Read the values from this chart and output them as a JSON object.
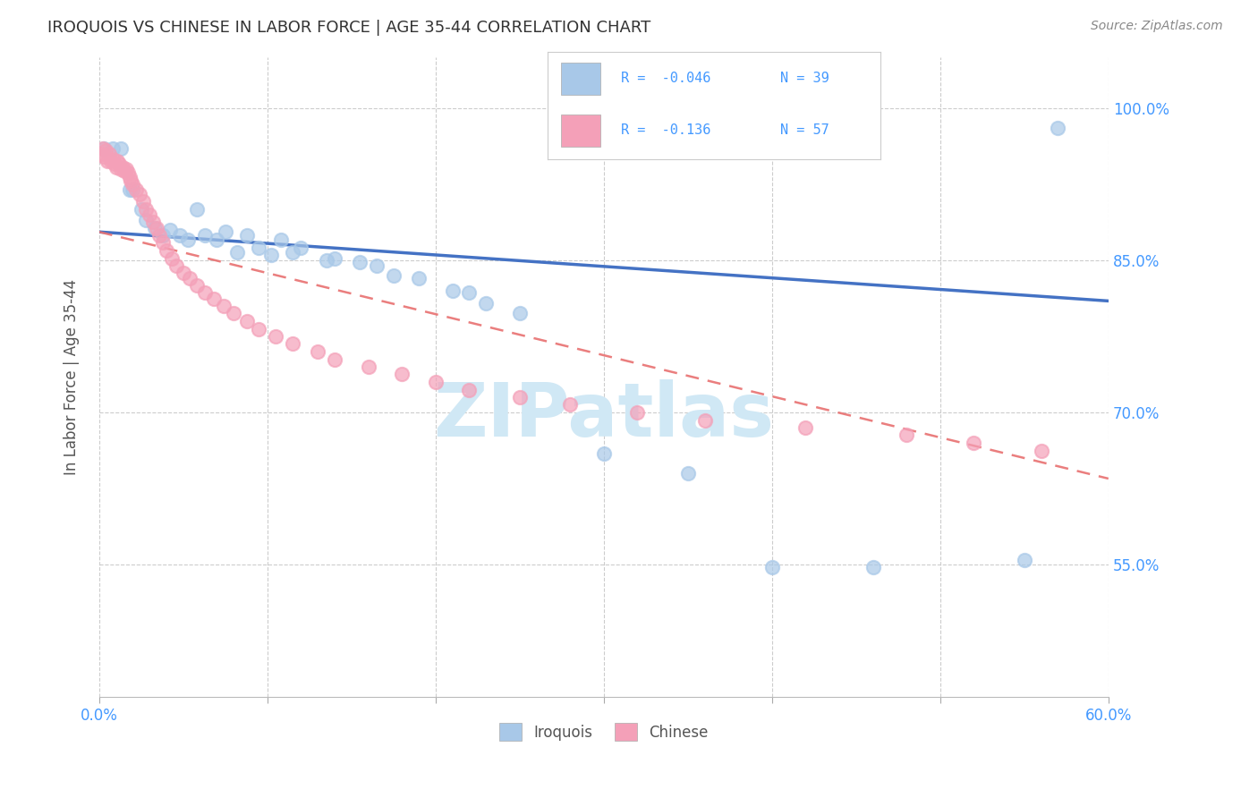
{
  "title": "IROQUOIS VS CHINESE IN LABOR FORCE | AGE 35-44 CORRELATION CHART",
  "source": "Source: ZipAtlas.com",
  "ylabel": "In Labor Force | Age 35-44",
  "watermark": "ZIPatlas",
  "legend_iroquois_R": "-0.046",
  "legend_iroquois_N": "39",
  "legend_chinese_R": "-0.136",
  "legend_chinese_N": "57",
  "xmin": 0.0,
  "xmax": 0.6,
  "ymin": 0.42,
  "ymax": 1.05,
  "yticks": [
    0.55,
    0.7,
    0.85,
    1.0
  ],
  "ytick_labels": [
    "55.0%",
    "70.0%",
    "85.0%",
    "100.0%"
  ],
  "xticks": [
    0.0,
    0.1,
    0.2,
    0.3,
    0.4,
    0.5,
    0.6
  ],
  "xtick_labels": [
    "0.0%",
    "",
    "",
    "",
    "",
    "",
    "60.0%"
  ],
  "iroquois_color": "#A8C8E8",
  "chinese_color": "#F4A0B8",
  "iroquois_line_color": "#4472C4",
  "chinese_line_color": "#E87070",
  "background_color": "#FFFFFF",
  "grid_color": "#CCCCCC",
  "iroquois_x": [
    0.003,
    0.008,
    0.013,
    0.018,
    0.02,
    0.025,
    0.028,
    0.033,
    0.038,
    0.042,
    0.048,
    0.053,
    0.058,
    0.063,
    0.07,
    0.075,
    0.082,
    0.088,
    0.095,
    0.102,
    0.108,
    0.115,
    0.12,
    0.135,
    0.14,
    0.155,
    0.165,
    0.175,
    0.19,
    0.21,
    0.22,
    0.23,
    0.25,
    0.3,
    0.35,
    0.4,
    0.46,
    0.55,
    0.57
  ],
  "iroquois_y": [
    0.96,
    0.96,
    0.96,
    0.92,
    0.92,
    0.9,
    0.89,
    0.882,
    0.875,
    0.88,
    0.875,
    0.87,
    0.9,
    0.875,
    0.87,
    0.878,
    0.858,
    0.875,
    0.862,
    0.855,
    0.87,
    0.858,
    0.862,
    0.85,
    0.852,
    0.848,
    0.845,
    0.835,
    0.832,
    0.82,
    0.818,
    0.808,
    0.798,
    0.66,
    0.64,
    0.548,
    0.548,
    0.555,
    0.98
  ],
  "chinese_x": [
    0.001,
    0.002,
    0.003,
    0.004,
    0.005,
    0.006,
    0.007,
    0.008,
    0.009,
    0.01,
    0.011,
    0.012,
    0.013,
    0.014,
    0.015,
    0.016,
    0.017,
    0.018,
    0.019,
    0.02,
    0.022,
    0.024,
    0.026,
    0.028,
    0.03,
    0.032,
    0.034,
    0.036,
    0.038,
    0.04,
    0.043,
    0.046,
    0.05,
    0.054,
    0.058,
    0.063,
    0.068,
    0.074,
    0.08,
    0.088,
    0.095,
    0.105,
    0.115,
    0.13,
    0.14,
    0.16,
    0.18,
    0.2,
    0.22,
    0.25,
    0.28,
    0.32,
    0.36,
    0.42,
    0.48,
    0.52,
    0.56
  ],
  "chinese_y": [
    0.955,
    0.96,
    0.952,
    0.958,
    0.948,
    0.955,
    0.948,
    0.95,
    0.945,
    0.942,
    0.948,
    0.945,
    0.94,
    0.942,
    0.938,
    0.94,
    0.936,
    0.932,
    0.928,
    0.925,
    0.92,
    0.915,
    0.908,
    0.9,
    0.895,
    0.888,
    0.882,
    0.875,
    0.868,
    0.86,
    0.852,
    0.845,
    0.838,
    0.832,
    0.825,
    0.818,
    0.812,
    0.805,
    0.798,
    0.79,
    0.782,
    0.775,
    0.768,
    0.76,
    0.752,
    0.745,
    0.738,
    0.73,
    0.722,
    0.715,
    0.708,
    0.7,
    0.692,
    0.685,
    0.678,
    0.67,
    0.662
  ]
}
